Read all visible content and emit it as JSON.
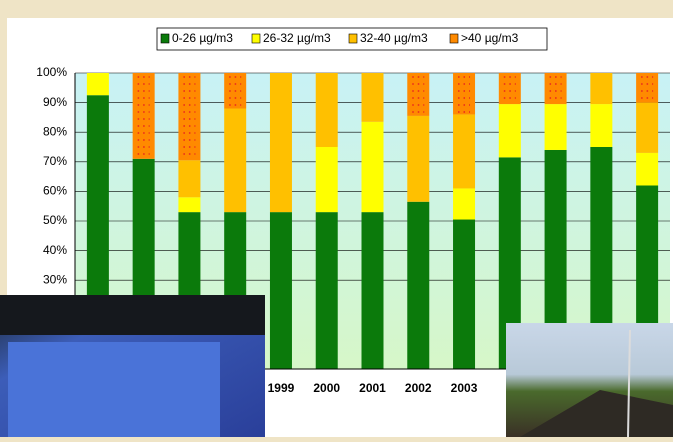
{
  "chart_data": {
    "type": "bar",
    "stacked": true,
    "categories": [
      null,
      null,
      null,
      null,
      "1999",
      "2000",
      "2001",
      "2002",
      "2003",
      null,
      null,
      null,
      null
    ],
    "series": [
      {
        "name": "0-26 µg/m3",
        "color": "#0b7a0b",
        "values": [
          92.5,
          71,
          53,
          53,
          53,
          53,
          53,
          56.5,
          50.5,
          71.5,
          74,
          75,
          62
        ]
      },
      {
        "name": "26-32 µg/m3",
        "color": "#ffff00",
        "values": [
          7.5,
          0,
          5,
          0,
          0,
          22,
          30.5,
          0,
          10.5,
          18,
          15.5,
          14.5,
          11
        ]
      },
      {
        "name": "32-40 µg/m3",
        "color": "#ffc000",
        "values": [
          0,
          0,
          12.5,
          35,
          47,
          25,
          16.5,
          29,
          25,
          0,
          0,
          10.5,
          17
        ]
      },
      {
        "name": ">40 µg/m3",
        "color": "#ff8a00",
        "values": [
          0,
          29,
          29.5,
          12,
          0,
          0,
          0,
          14.5,
          14,
          10.5,
          10.5,
          0,
          10
        ]
      }
    ],
    "ylim": [
      0,
      100
    ],
    "yticks": [
      {
        "value": 30,
        "label": "30%"
      },
      {
        "value": 40,
        "label": "40%"
      },
      {
        "value": 50,
        "label": "50%"
      },
      {
        "value": 60,
        "label": "60%"
      },
      {
        "value": 70,
        "label": "70%"
      },
      {
        "value": 80,
        "label": "80%"
      },
      {
        "value": 90,
        "label": "90%"
      },
      {
        "value": 100,
        "label": "100%"
      }
    ],
    "grid": true
  }
}
